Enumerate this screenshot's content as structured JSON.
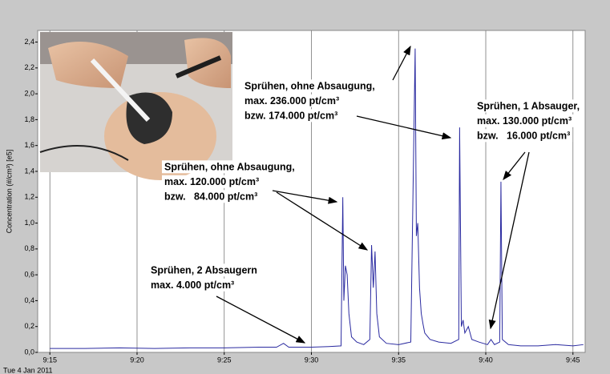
{
  "chart_data": {
    "type": "line",
    "y_label": "Concentration (#/cm³) [e5]",
    "date_label": "Tue 4 Jan 2011",
    "xlim": [
      554.3,
      585.7
    ],
    "xticks": [
      {
        "value": 555,
        "label": "9:15"
      },
      {
        "value": 560,
        "label": "9:20"
      },
      {
        "value": 565,
        "label": "9:25"
      },
      {
        "value": 570,
        "label": "9:30"
      },
      {
        "value": 575,
        "label": "9:35"
      },
      {
        "value": 580,
        "label": "9:40"
      },
      {
        "value": 585,
        "label": "9:45"
      }
    ],
    "ylim": [
      0,
      2.49
    ],
    "yticks": [
      {
        "value": 0,
        "label": "0,0"
      },
      {
        "value": 0.2,
        "label": "0,2"
      },
      {
        "value": 0.4,
        "label": "0,4"
      },
      {
        "value": 0.6,
        "label": "0,6"
      },
      {
        "value": 0.8,
        "label": "0,8"
      },
      {
        "value": 1.0,
        "label": "1,0"
      },
      {
        "value": 1.2,
        "label": "1,2"
      },
      {
        "value": 1.4,
        "label": "1,4"
      },
      {
        "value": 1.6,
        "label": "1,6"
      },
      {
        "value": 1.8,
        "label": "1,8"
      },
      {
        "value": 2.0,
        "label": "2,0"
      },
      {
        "value": 2.2,
        "label": "2,2"
      },
      {
        "value": 2.4,
        "label": "2,4"
      }
    ],
    "grid": "x",
    "x": [
      555,
      557,
      559,
      561,
      563,
      565,
      567,
      568,
      568.4,
      568.7,
      570,
      571,
      571.7,
      571.8,
      571.86,
      571.95,
      572.05,
      572.15,
      572.3,
      572.6,
      573,
      573.35,
      573.45,
      573.55,
      573.65,
      573.75,
      573.9,
      574.3,
      575,
      575.7,
      575.95,
      576.02,
      576.1,
      576.2,
      576.3,
      576.4,
      576.5,
      576.8,
      577.3,
      578,
      578.45,
      578.5,
      578.6,
      578.7,
      578.8,
      579,
      579.2,
      579.6,
      580.1,
      580.3,
      580.5,
      580.8,
      580.87,
      580.95,
      581.3,
      582,
      583,
      584,
      585,
      585.6
    ],
    "series": [
      {
        "color": "#2a2aa0",
        "values": [
          0.03,
          0.03,
          0.035,
          0.03,
          0.035,
          0.035,
          0.04,
          0.04,
          0.07,
          0.04,
          0.04,
          0.045,
          0.05,
          1.2,
          0.4,
          0.67,
          0.6,
          0.3,
          0.12,
          0.08,
          0.06,
          0.1,
          0.83,
          0.5,
          0.78,
          0.3,
          0.12,
          0.07,
          0.06,
          0.08,
          2.35,
          0.9,
          1.0,
          0.5,
          0.3,
          0.22,
          0.15,
          0.1,
          0.08,
          0.07,
          0.1,
          1.74,
          0.2,
          0.25,
          0.15,
          0.2,
          0.1,
          0.08,
          0.06,
          0.1,
          0.06,
          0.08,
          1.32,
          0.1,
          0.06,
          0.05,
          0.05,
          0.06,
          0.05,
          0.06
        ]
      }
    ],
    "annotations": [
      [
        "Sprühen, ohne Absaugung,",
        "max. 236.000 pt/cm³",
        "bzw. 174.000 pt/cm³"
      ],
      [
        "Sprühen, 1 Absauger,",
        "max. 130.000 pt/cm³",
        "bzw.   16.000 pt/cm³"
      ],
      [
        "Sprühen, ohne Absaugung,",
        "max. 120.000 pt/cm³",
        "bzw.   84.000 pt/cm³"
      ],
      [
        "Sprühen, 2 Absaugern",
        "max. 4.000 pt/cm³"
      ]
    ]
  }
}
